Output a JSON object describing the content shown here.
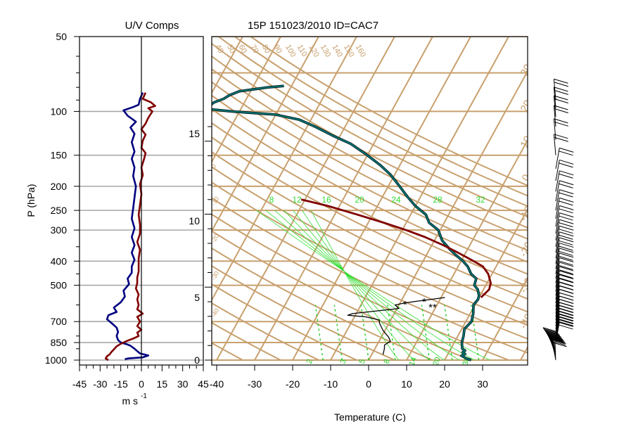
{
  "chart_data": [
    {
      "type": "line",
      "title": "U/V Comps",
      "xlabel": "m s",
      "xlabel_superscript": "-1",
      "ylabel": "P (hPa)",
      "y_scale": "log-pressure",
      "xlim": [
        -45,
        45
      ],
      "ylim": [
        1000,
        50
      ],
      "x_ticks": [
        "-45",
        "-30",
        "-15",
        "0",
        "15",
        "30",
        "45"
      ],
      "y_ticks": [
        {
          "p": 50,
          "label": "50"
        },
        {
          "p": 100,
          "label": "100"
        },
        {
          "p": 150,
          "label": "150"
        },
        {
          "p": 200,
          "label": "200"
        },
        {
          "p": 250,
          "label": "250"
        },
        {
          "p": 300,
          "label": "300"
        },
        {
          "p": 400,
          "label": "400"
        },
        {
          "p": 500,
          "label": "500"
        },
        {
          "p": 700,
          "label": "700"
        },
        {
          "p": 850,
          "label": "850"
        },
        {
          "p": 1000,
          "label": "1000"
        }
      ],
      "gridlines_p": [
        100,
        150,
        200,
        250,
        300,
        400,
        500,
        700,
        850,
        1000
      ],
      "series": [
        {
          "color": "#000080",
          "points": [
            [
              -12,
              993
            ],
            [
              -10,
              985
            ],
            [
              1,
              975
            ],
            [
              5,
              958
            ],
            [
              -1,
              940
            ],
            [
              -3,
              920
            ],
            [
              -5,
              900
            ],
            [
              -8,
              875
            ],
            [
              -11,
              862
            ],
            [
              -15,
              850
            ],
            [
              -17,
              830
            ],
            [
              -18,
              800
            ],
            [
              -17,
              770
            ],
            [
              -18,
              740
            ],
            [
              -21,
              715
            ],
            [
              -25,
              685
            ],
            [
              -24,
              660
            ],
            [
              -18,
              640
            ],
            [
              -20,
              615
            ],
            [
              -15,
              585
            ],
            [
              -12,
              555
            ],
            [
              -13,
              525
            ],
            [
              -9,
              495
            ],
            [
              -10,
              470
            ],
            [
              -7,
              445
            ],
            [
              -7,
              420
            ],
            [
              -5,
              395
            ],
            [
              -7,
              370
            ],
            [
              -5,
              345
            ],
            [
              -7,
              320
            ],
            [
              -5,
              295
            ],
            [
              -7,
              270
            ],
            [
              -6,
              245
            ],
            [
              -5,
              222
            ],
            [
              -4,
              200
            ],
            [
              -6,
              182
            ],
            [
              -5,
              168
            ],
            [
              -7,
              155
            ],
            [
              -5,
              145
            ],
            [
              -7,
              133
            ],
            [
              -5,
              123
            ],
            [
              -8,
              116
            ],
            [
              -4,
              110
            ],
            [
              -10,
              104
            ],
            [
              -13,
              99
            ],
            [
              -6,
              96
            ],
            [
              -2,
              94
            ],
            [
              -1,
              89
            ],
            [
              1,
              84
            ]
          ]
        },
        {
          "color": "#800000",
          "points": [
            [
              -24,
              1000
            ],
            [
              -26,
              985
            ],
            [
              -25,
              965
            ],
            [
              -23,
              948
            ],
            [
              -22,
              930
            ],
            [
              -20,
              905
            ],
            [
              -18,
              880
            ],
            [
              -15,
              860
            ],
            [
              -10,
              835
            ],
            [
              -5,
              815
            ],
            [
              -2,
              800
            ],
            [
              -3,
              775
            ],
            [
              0,
              755
            ],
            [
              -3,
              730
            ],
            [
              -1,
              700
            ],
            [
              -3,
              670
            ],
            [
              1,
              650
            ],
            [
              -3,
              625
            ],
            [
              -2,
              600
            ],
            [
              -3,
              570
            ],
            [
              -2,
              545
            ],
            [
              -4,
              515
            ],
            [
              -3,
              490
            ],
            [
              -3,
              465
            ],
            [
              -2,
              440
            ],
            [
              -2,
              415
            ],
            [
              -2,
              390
            ],
            [
              -1,
              360
            ],
            [
              -3,
              335
            ],
            [
              -1,
              310
            ],
            [
              -1,
              285
            ],
            [
              -2,
              260
            ],
            [
              -1,
              238
            ],
            [
              0,
              215
            ],
            [
              -1,
              196
            ],
            [
              1,
              180
            ],
            [
              0,
              168
            ],
            [
              2,
              155
            ],
            [
              3,
              147
            ],
            [
              0,
              140
            ],
            [
              1,
              131
            ],
            [
              3,
              124
            ],
            [
              0,
              118
            ],
            [
              3,
              112
            ],
            [
              5,
              106
            ],
            [
              8,
              100
            ],
            [
              5,
              97
            ],
            [
              10,
              95
            ],
            [
              7,
              92
            ],
            [
              1,
              89
            ],
            [
              3,
              84
            ]
          ]
        }
      ]
    },
    {
      "type": "line",
      "title": "15P 151023/2010 ID=CAC7",
      "xlabel": "Temperature (C)",
      "y_scale": "log-pressure",
      "xlim": [
        -40,
        40
      ],
      "ylim": [
        1000,
        50
      ],
      "x_ticks": [
        "-40",
        "-30",
        "-20",
        "-10",
        "0",
        "10",
        "20",
        "30"
      ],
      "height_ticks_km": [
        {
          "z": 0,
          "label": "0",
          "p": 1000
        },
        {
          "z": 5,
          "label": "5",
          "p": 560
        },
        {
          "z": 10,
          "label": "10",
          "p": 275
        },
        {
          "z": 15,
          "label": "15",
          "p": 123
        }
      ],
      "isotherm_labels_c": [
        "-40",
        "-30",
        "-20",
        "-10",
        "0",
        "10",
        "20",
        "30",
        "40",
        "50"
      ],
      "dry_adiabat_labels_c": [
        "-40",
        "-30",
        "-20",
        "-10",
        "0",
        "10",
        "20",
        "30",
        "40",
        "50"
      ],
      "theta_labels_top": [
        "40",
        "50",
        "60",
        "70",
        "80",
        "90",
        "100",
        "110",
        "120",
        "130",
        "140",
        "150",
        "160"
      ],
      "moist_adiabat_labels": [
        "8",
        "12",
        "16",
        "20",
        "24",
        "28",
        "32"
      ],
      "mixing_ratio_labels": [
        "2",
        "3",
        "5",
        "8",
        "14",
        "20",
        "30"
      ],
      "colors": {
        "grid": "#c8a06e",
        "temperature": "#006e6e",
        "parcel": "#800000",
        "dewpoint": "#000000",
        "moist_adiabat": "#33dd33",
        "mixing_ratio": "#22cc22"
      },
      "series": [
        {
          "name": "temperature",
          "points": [
            [
              27,
              1000
            ],
            [
              25.5,
              985
            ],
            [
              23.8,
              960
            ],
            [
              24.5,
              945
            ],
            [
              23.6,
              930
            ],
            [
              24,
              915
            ],
            [
              23,
              900
            ],
            [
              22,
              850
            ],
            [
              21.5,
              800
            ],
            [
              20.7,
              750
            ],
            [
              21.5,
              700
            ],
            [
              20.8,
              650
            ],
            [
              19.6,
              600
            ],
            [
              20,
              570
            ],
            [
              19.7,
              550
            ],
            [
              18.5,
              520
            ],
            [
              17,
              500
            ],
            [
              16.5,
              470
            ],
            [
              14.5,
              450
            ],
            [
              12.5,
              420
            ],
            [
              10.5,
              400
            ],
            [
              8,
              380
            ],
            [
              5.5,
              360
            ],
            [
              2,
              330
            ],
            [
              -0.5,
              300
            ],
            [
              -4,
              280
            ],
            [
              -6,
              260
            ],
            [
              -10,
              240
            ],
            [
              -13.5,
              220
            ],
            [
              -17,
              200
            ],
            [
              -21,
              180
            ],
            [
              -25,
              165
            ],
            [
              -30,
              150
            ],
            [
              -36,
              135
            ],
            [
              -42,
              125
            ],
            [
              -48,
              115
            ],
            [
              -53,
              108
            ],
            [
              -60,
              103
            ],
            [
              -72,
              100
            ],
            [
              -78,
              98
            ],
            [
              -79,
              96
            ],
            [
              -78,
              92
            ],
            [
              -76,
              89
            ],
            [
              -75,
              86
            ],
            [
              -73,
              83
            ],
            [
              -66,
              80
            ],
            [
              -62,
              79
            ]
          ]
        },
        {
          "name": "parcel",
          "points": [
            [
              20.5,
              560
            ],
            [
              21.5,
              520
            ],
            [
              21,
              490
            ],
            [
              19,
              450
            ],
            [
              16.5,
              420
            ],
            [
              12.5,
              395
            ],
            [
              8,
              370
            ],
            [
              3,
              345
            ],
            [
              -3,
              320
            ],
            [
              -9,
              300
            ],
            [
              -16,
              280
            ],
            [
              -24,
              260
            ],
            [
              -33,
              240
            ],
            [
              -41,
              226
            ]
          ]
        },
        {
          "name": "dewpoint",
          "points": [
            [
              3,
              950
            ],
            [
              2.5,
              900
            ],
            [
              2,
              870
            ],
            [
              3,
              840
            ],
            [
              2,
              810
            ],
            [
              -0.5,
              760
            ],
            [
              -2.5,
              710
            ],
            [
              -3,
              690
            ],
            [
              -7,
              670
            ],
            [
              -12,
              660
            ],
            [
              -11,
              650
            ],
            [
              0.5,
              620
            ],
            [
              -1,
              600
            ],
            [
              1,
              590
            ],
            [
              4,
              580
            ],
            [
              6,
              575
            ],
            [
              11,
              560
            ]
          ]
        }
      ],
      "annotations": [
        "*",
        "*",
        "**"
      ]
    },
    {
      "type": "scatter",
      "name": "wind barbs",
      "p_levels": [
        1000,
        985,
        970,
        955,
        940,
        925,
        910,
        895,
        880,
        865,
        850,
        830,
        810,
        790,
        770,
        750,
        730,
        710,
        690,
        670,
        650,
        630,
        610,
        590,
        570,
        550,
        530,
        510,
        490,
        470,
        450,
        430,
        410,
        390,
        370,
        350,
        330,
        310,
        290,
        270,
        250,
        230,
        210,
        190,
        170,
        150,
        130,
        115,
        105,
        97,
        90
      ]
    }
  ]
}
